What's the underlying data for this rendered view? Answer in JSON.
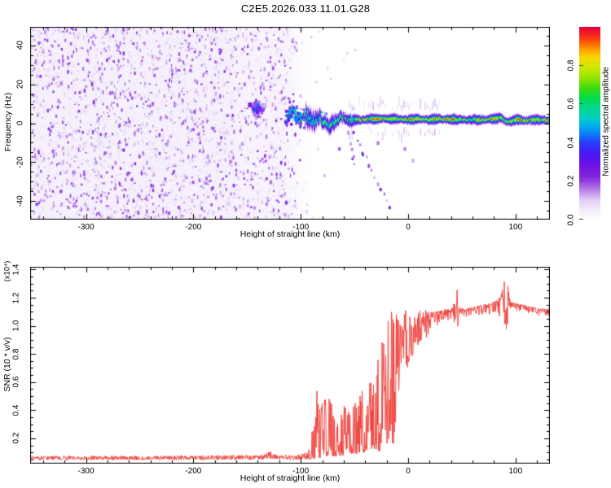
{
  "title": "C2E5.2026.033.11.01.G28",
  "top_plot": {
    "xlabel": "Height of straight line (km)",
    "ylabel": "Frequency (Hz)",
    "x_tick_labels": [
      "-300",
      "-200",
      "-100",
      "0",
      "100"
    ],
    "y_tick_labels": [
      "-40",
      "-20",
      "0",
      "20",
      "40"
    ]
  },
  "colorbar": {
    "label": "Normalized spectral amplitude",
    "tick_labels": [
      "0.0",
      "0.2",
      "0.4",
      "0.6",
      "0.8"
    ]
  },
  "bottom_plot": {
    "xlabel": "Height of straight line (km)",
    "ylabel": "SNR (10 * v/v)",
    "scale_note": "(x10⁴)",
    "x_tick_labels": [
      "-300",
      "-200",
      "-100",
      "0",
      "100"
    ],
    "y_tick_labels": [
      "0.2",
      "0.4",
      "0.6",
      "0.8",
      "1.0",
      "1.2",
      "1.4"
    ]
  },
  "colors": {
    "axis": "#000000",
    "snr_line": "#ee3a34",
    "colormap": [
      [
        0.0,
        "#ffffff"
      ],
      [
        0.05,
        "#f3ebfb"
      ],
      [
        0.1,
        "#e2cdf5"
      ],
      [
        0.16,
        "#b275e8"
      ],
      [
        0.22,
        "#8326dd"
      ],
      [
        0.28,
        "#6d12e4"
      ],
      [
        0.34,
        "#4a18f5"
      ],
      [
        0.4,
        "#2740ff"
      ],
      [
        0.45,
        "#0a85fa"
      ],
      [
        0.49,
        "#00b2e8"
      ],
      [
        0.53,
        "#00cfc0"
      ],
      [
        0.58,
        "#00d98c"
      ],
      [
        0.63,
        "#00dc4e"
      ],
      [
        0.68,
        "#38dc10"
      ],
      [
        0.73,
        "#8ce400"
      ],
      [
        0.79,
        "#cce800"
      ],
      [
        0.84,
        "#f8d800"
      ],
      [
        0.88,
        "#ffa400"
      ],
      [
        0.92,
        "#ff5e00"
      ],
      [
        0.96,
        "#f62420"
      ],
      [
        1.0,
        "#e6003e"
      ]
    ]
  },
  "chart_data": [
    {
      "type": "heatmap",
      "title": "C2E5.2026.033.11.01.G28",
      "xlabel": "Height of straight line (km)",
      "ylabel": "Frequency (Hz)",
      "colorbar_label": "Normalized spectral amplitude",
      "xlim": [
        -352,
        132
      ],
      "ylim": [
        -49.4,
        49.4
      ],
      "x_major_ticks": [
        -300,
        -200,
        -100,
        0,
        100
      ],
      "x_minor_step": 20,
      "y_major_ticks": [
        -40,
        -20,
        0,
        20,
        40
      ],
      "y_minor_step": 5,
      "colorbar_range": [
        0,
        1
      ],
      "colorbar_ticks": [
        0,
        0.2,
        0.4,
        0.6,
        0.8
      ],
      "noise_region": {
        "km_start": -352,
        "dense_until_km": -162,
        "medium_until_km": -118,
        "fade_end_km": -92,
        "amplitude_range": [
          0.03,
          0.27
        ]
      },
      "precursor_cluster": {
        "km_center": -141,
        "km_spread": 11,
        "hz_center": 8,
        "hz_spread": 6,
        "amp_max": 0.45
      },
      "signal_path": [
        [
          -113,
          3,
          0.5
        ],
        [
          -108,
          5.5,
          0.55
        ],
        [
          -103,
          2,
          0.6
        ],
        [
          -98,
          4,
          0.62
        ],
        [
          -93,
          2.5,
          0.6
        ],
        [
          -88,
          1,
          0.66
        ],
        [
          -83,
          3,
          0.66
        ],
        [
          -78,
          0,
          0.7
        ],
        [
          -73,
          -1,
          0.72
        ],
        [
          -68,
          0.5,
          0.7
        ],
        [
          -63,
          3.5,
          0.74
        ],
        [
          -58,
          2,
          0.78
        ],
        [
          -53,
          1,
          0.82
        ],
        [
          -48,
          2,
          0.86
        ],
        [
          -43,
          1.5,
          0.88
        ],
        [
          -38,
          2.5,
          0.9
        ],
        [
          -33,
          2,
          0.92
        ],
        [
          -28,
          2,
          0.92
        ],
        [
          -23,
          2.5,
          0.93
        ],
        [
          -18,
          2,
          0.95
        ],
        [
          -13,
          2.2,
          0.94
        ],
        [
          -8,
          2,
          0.93
        ],
        [
          -3,
          2,
          0.95
        ],
        [
          2,
          1.8,
          0.95
        ],
        [
          10,
          2,
          0.94
        ],
        [
          20,
          1.8,
          0.95
        ],
        [
          30,
          2.2,
          0.94
        ],
        [
          40,
          1.8,
          0.95
        ],
        [
          50,
          2,
          0.9
        ],
        [
          55,
          1.5,
          0.86
        ],
        [
          60,
          2,
          0.92
        ],
        [
          70,
          1.8,
          0.95
        ],
        [
          80,
          2.2,
          0.93
        ],
        [
          86,
          3,
          0.9
        ],
        [
          90,
          1,
          0.86
        ],
        [
          94,
          0.8,
          0.88
        ],
        [
          100,
          1.8,
          0.95
        ],
        [
          110,
          1.5,
          0.94
        ],
        [
          120,
          1.8,
          0.93
        ],
        [
          131,
          1.5,
          0.9
        ]
      ],
      "descending_streaks": [
        {
          "from_km_hz": [
            -50,
            -5
          ],
          "to_km_hz": [
            -17,
            -43
          ]
        },
        {
          "from_km_hz": [
            -56,
            -4
          ],
          "to_km_hz": [
            -50,
            -21
          ]
        }
      ],
      "isolated_blobs": [
        [
          -42,
          -16,
          0.38
        ],
        [
          -3,
          -13,
          0.15
        ],
        [
          4.5,
          -19,
          0.12
        ],
        [
          -28,
          -10,
          0.16
        ],
        [
          -64,
          -13,
          0.18
        ]
      ]
    },
    {
      "type": "line",
      "xlabel": "Height of straight line (km)",
      "ylabel": "SNR (10 * v/v)",
      "scale_factor": "(x10⁴)",
      "xlim": [
        -352,
        132
      ],
      "ylim": [
        0.02,
        1.42
      ],
      "x_major_ticks": [
        -300,
        -200,
        -100,
        0,
        100
      ],
      "x_minor_step": 20,
      "y_major_ticks": [
        0.2,
        0.4,
        0.6,
        0.8,
        1.0,
        1.2,
        1.4
      ],
      "y_minor_step": 0.05,
      "line_color": "#ee3a34",
      "envelope_km_lo_hi": [
        [
          -352,
          0.045,
          0.075
        ],
        [
          -250,
          0.045,
          0.075
        ],
        [
          -180,
          0.045,
          0.08
        ],
        [
          -140,
          0.045,
          0.08
        ],
        [
          -133,
          0.05,
          0.09
        ],
        [
          -129,
          0.055,
          0.13
        ],
        [
          -125,
          0.05,
          0.09
        ],
        [
          -110,
          0.045,
          0.08
        ],
        [
          -97,
          0.045,
          0.09
        ],
        [
          -92,
          0.05,
          0.14
        ],
        [
          -89,
          0.05,
          0.3
        ],
        [
          -86,
          0.06,
          0.5
        ],
        [
          -83,
          0.06,
          0.62
        ],
        [
          -80,
          0.06,
          0.55
        ],
        [
          -77,
          0.07,
          0.48
        ],
        [
          -74,
          0.08,
          0.52
        ],
        [
          -71,
          0.07,
          0.44
        ],
        [
          -68,
          0.07,
          0.36
        ],
        [
          -65,
          0.08,
          0.3
        ],
        [
          -62,
          0.07,
          0.38
        ],
        [
          -59,
          0.08,
          0.45
        ],
        [
          -56,
          0.07,
          0.4
        ],
        [
          -53,
          0.08,
          0.35
        ],
        [
          -50,
          0.09,
          0.48
        ],
        [
          -47,
          0.09,
          0.42
        ],
        [
          -44,
          0.1,
          0.6
        ],
        [
          -41,
          0.1,
          0.5
        ],
        [
          -38,
          0.12,
          0.55
        ],
        [
          -35,
          0.1,
          0.65
        ],
        [
          -32,
          0.12,
          0.6
        ],
        [
          -29,
          0.12,
          0.72
        ],
        [
          -26,
          0.1,
          0.85
        ],
        [
          -23,
          0.14,
          0.95
        ],
        [
          -20,
          0.12,
          1.05
        ],
        [
          -17,
          0.2,
          1.1
        ],
        [
          -14,
          0.15,
          1.2
        ],
        [
          -12,
          0.2,
          1.33
        ],
        [
          -10,
          0.3,
          1.15
        ],
        [
          -8,
          0.35,
          1.05
        ],
        [
          -6,
          0.5,
          1.1
        ],
        [
          -4,
          0.55,
          1.08
        ],
        [
          -2,
          0.5,
          1.12
        ],
        [
          0,
          0.6,
          1.1
        ],
        [
          3,
          0.65,
          1.12
        ],
        [
          6,
          0.7,
          1.1
        ],
        [
          9,
          0.72,
          1.12
        ],
        [
          12,
          0.78,
          1.1
        ],
        [
          15,
          0.8,
          1.12
        ],
        [
          18,
          0.85,
          1.1
        ],
        [
          21,
          0.92,
          1.1
        ],
        [
          25,
          0.98,
          1.1
        ],
        [
          30,
          1.02,
          1.11
        ],
        [
          35,
          1.03,
          1.12
        ],
        [
          40,
          1.04,
          1.12
        ],
        [
          44,
          1.0,
          1.18
        ],
        [
          45.5,
          0.96,
          1.26
        ],
        [
          47,
          1.03,
          1.13
        ],
        [
          52,
          1.05,
          1.12
        ],
        [
          58,
          1.06,
          1.13
        ],
        [
          64,
          1.06,
          1.14
        ],
        [
          70,
          1.07,
          1.15
        ],
        [
          76,
          1.08,
          1.16
        ],
        [
          82,
          1.08,
          1.18
        ],
        [
          86,
          1.06,
          1.2
        ],
        [
          89,
          1.05,
          1.3
        ],
        [
          91,
          0.63,
          1.385
        ],
        [
          93,
          1.0,
          1.28
        ],
        [
          95,
          1.07,
          1.17
        ],
        [
          100,
          1.1,
          1.16
        ],
        [
          106,
          1.1,
          1.15
        ],
        [
          112,
          1.09,
          1.14
        ],
        [
          118,
          1.08,
          1.13
        ],
        [
          124,
          1.07,
          1.12
        ],
        [
          131,
          1.06,
          1.12
        ]
      ]
    }
  ]
}
